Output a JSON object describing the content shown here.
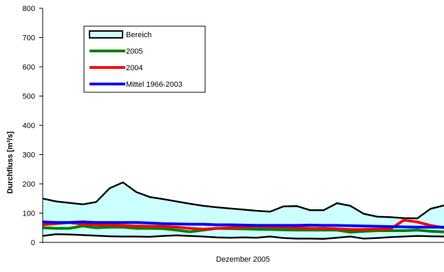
{
  "chart_data": {
    "type": "area",
    "xlabel": "Dezember 2005",
    "ylabel": "Durchfluss [m³/s]",
    "ylim": [
      0,
      800
    ],
    "yticks": [
      0,
      100,
      200,
      300,
      400,
      500,
      600,
      700,
      800
    ],
    "x": [
      1,
      2,
      3,
      4,
      5,
      6,
      7,
      8,
      9,
      10,
      11,
      12,
      13,
      14,
      15,
      16,
      17,
      18,
      19,
      20,
      21,
      22,
      23,
      24,
      25,
      26,
      27,
      28,
      29,
      30,
      31
    ],
    "legend_position": "top-left",
    "range": {
      "name": "Bereich",
      "fill": "#ccffff",
      "stroke": "#000000",
      "upper": [
        150,
        140,
        135,
        130,
        138,
        185,
        205,
        172,
        155,
        148,
        140,
        132,
        125,
        120,
        116,
        112,
        108,
        105,
        123,
        124,
        110,
        110,
        134,
        125,
        98,
        88,
        86,
        83,
        82,
        115,
        126
      ],
      "lower": [
        22,
        28,
        27,
        25,
        23,
        21,
        20,
        20,
        19,
        22,
        24,
        22,
        20,
        17,
        16,
        17,
        16,
        20,
        15,
        13,
        13,
        12,
        16,
        20,
        13,
        15,
        18,
        20,
        22,
        21,
        20
      ]
    },
    "series": [
      {
        "name": "2005",
        "color": "#008000",
        "values": [
          50,
          48,
          48,
          56,
          50,
          52,
          52,
          48,
          48,
          47,
          42,
          36,
          42,
          48,
          47,
          46,
          45,
          44,
          43,
          42,
          42,
          42,
          42,
          35,
          38,
          40,
          40,
          40,
          42,
          38,
          36
        ]
      },
      {
        "name": "2004",
        "color": "#ff0000",
        "values": [
          60,
          64,
          68,
          62,
          60,
          60,
          58,
          56,
          55,
          55,
          52,
          48,
          45,
          48,
          50,
          52,
          55,
          52,
          52,
          50,
          48,
          48,
          46,
          44,
          44,
          45,
          46,
          76,
          70,
          58,
          50
        ]
      },
      {
        "name": "Mittel 1966-2003",
        "color": "#0000ff",
        "values": [
          70,
          68,
          68,
          70,
          68,
          68,
          68,
          68,
          66,
          64,
          63,
          62,
          62,
          60,
          60,
          59,
          58,
          58,
          58,
          58,
          59,
          58,
          58,
          57,
          56,
          55,
          54,
          53,
          52,
          52,
          52
        ]
      }
    ]
  }
}
